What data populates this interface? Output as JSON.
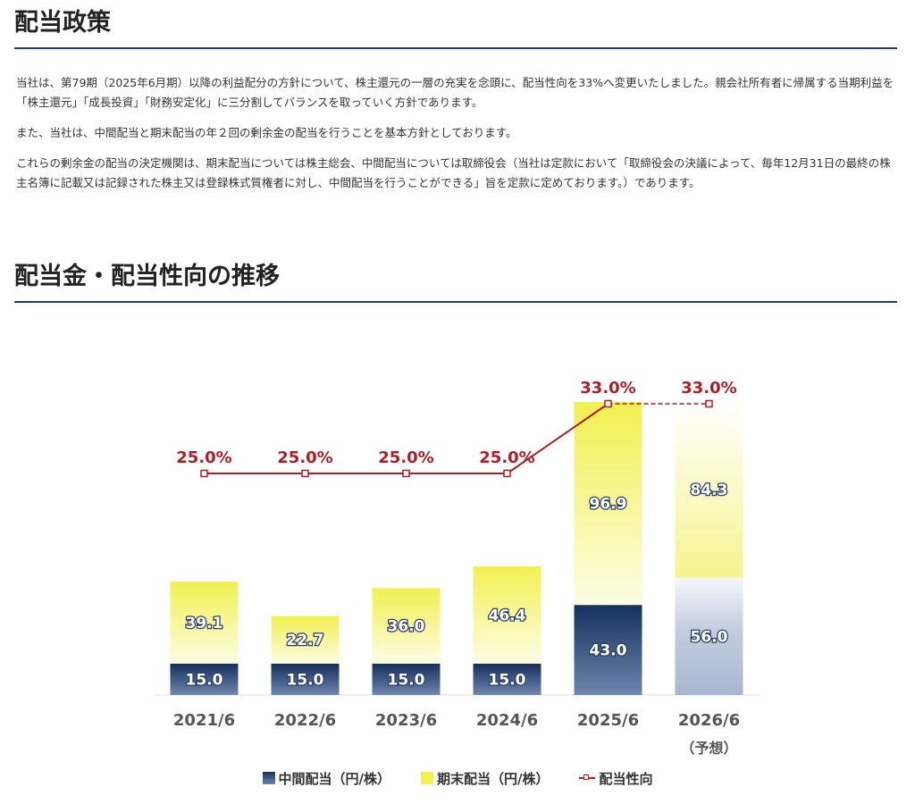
{
  "policy": {
    "title": "配当政策",
    "paragraphs": [
      "当社は、第79期（2025年6月期）以降の利益配分の方針について、株主還元の一層の充実を念頭に、配当性向を33%へ変更いたしました。親会社所有者に帰属する当期利益を「株主還元」「成長投資」「財務安定化」に三分割してバランスを取っていく方針であります。",
      "また、当社は、中間配当と期末配当の年２回の剰余金の配当を行うことを基本方針としております。",
      "これらの剰余金の配当の決定機関は、期末配当については株主総会、中間配当については取締役会（当社は定款において「取締役会の決議によって、毎年12月31日の最終の株主名簿に記載又は記録された株主又は登録株式質権者に対し、中間配当を行うことができる」旨を定款に定めております。）であります。"
    ]
  },
  "trend": {
    "title": "配当金・配当性向の推移"
  },
  "colors": {
    "accent_rule": "#1e3e6e",
    "interim_top": "#14305e",
    "interim_bottom": "#6f86ad",
    "final_top": "#f2f04f",
    "final_bottom": "#fdfde4",
    "ratio_line": "#b01c24"
  },
  "chart_data": {
    "type": "bar",
    "stacked": true,
    "categories": [
      "2021/6",
      "2022/6",
      "2023/6",
      "2024/6",
      "2025/6",
      "2026/6"
    ],
    "category_notes": [
      "",
      "",
      "",
      "",
      "",
      "（予想）"
    ],
    "forecast_index": 5,
    "series": [
      {
        "name": "中間配当（円/株）",
        "values": [
          15.0,
          15.0,
          15.0,
          15.0,
          43.0,
          56.0
        ]
      },
      {
        "name": "期末配当（円/株）",
        "values": [
          39.1,
          22.7,
          36.0,
          46.4,
          96.9,
          84.3
        ]
      }
    ],
    "value_labels": {
      "interim": [
        "15.0",
        "15.0",
        "15.0",
        "15.0",
        "43.0",
        "56.0"
      ],
      "final": [
        "39.1",
        "22.7",
        "36.0",
        "46.4",
        "96.9",
        "84.3"
      ]
    },
    "line_series": {
      "name": "配当性向",
      "values": [
        25.0,
        25.0,
        25.0,
        25.0,
        33.0,
        33.0
      ],
      "labels": [
        "25.0%",
        "25.0%",
        "25.0%",
        "25.0%",
        "33.0%",
        "33.0%"
      ],
      "dashed_from_index": 4
    },
    "ylim": [
      0,
      145
    ],
    "ratio_ylim": [
      0,
      45
    ],
    "grid": false,
    "legend_position": "bottom-center"
  }
}
